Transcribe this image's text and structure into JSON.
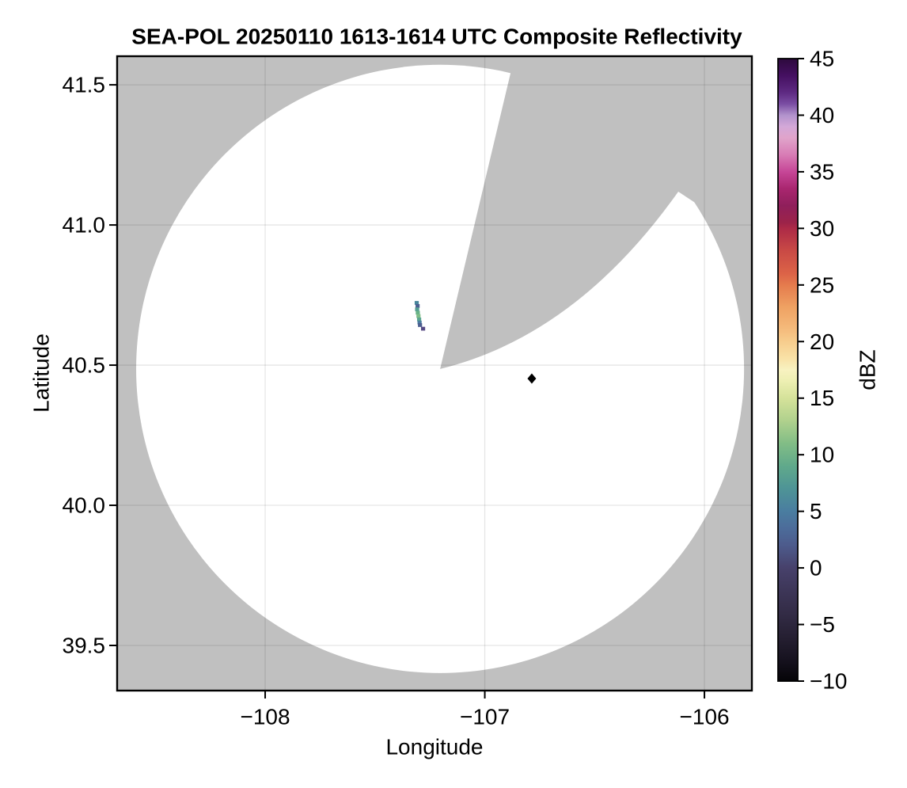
{
  "figure": {
    "title": "SEA-POL 20250110 1613-1614 UTC Composite Reflectivity",
    "xlabel": "Longitude",
    "ylabel": "Latitude",
    "colorbar_label": "dBZ"
  },
  "chart_data": {
    "type": "heatmap",
    "title": "SEA-POL 20250110 1613-1614 UTC Composite Reflectivity",
    "xlabel": "Longitude",
    "ylabel": "Latitude",
    "xlim": [
      -108.674,
      -105.784
    ],
    "ylim": [
      39.339,
      41.602
    ],
    "x_ticks": [
      -108,
      -107,
      -106
    ],
    "y_ticks": [
      39.5,
      40.0,
      40.5,
      41.0,
      41.5
    ],
    "grid": true,
    "background_color": "#c0c0c0",
    "gridline_color": "rgba(0,0,0,0.10)",
    "coverage": {
      "fill": "#ffffff",
      "center_lon": -107.2035,
      "center_lat": 40.4865,
      "radius_deg_lat": 1.085,
      "blocked_sector": {
        "fill": "#c0c0c0",
        "apex_lon": -107.2035,
        "apex_lat": 40.4865,
        "azimuth_start_deg": 13,
        "azimuth_end_deg": 74,
        "left_edge_end": [
          -106.883,
          41.541
        ],
        "curve_control": [
          -106.584,
          40.605
        ],
        "right_edge_end": [
          -106.119,
          41.119
        ]
      }
    },
    "radar_site_marker": {
      "lon": -106.786,
      "lat": 40.452,
      "shape": "diamond",
      "color": "#000000"
    },
    "echo_cells": [
      {
        "lon": -107.31,
        "lat": 40.722,
        "dbz": 6,
        "color": "#47859b"
      },
      {
        "lon": -107.306,
        "lat": 40.711,
        "dbz": 3,
        "color": "#4c5f90"
      },
      {
        "lon": -107.308,
        "lat": 40.699,
        "dbz": 8,
        "color": "#539e92"
      },
      {
        "lon": -107.305,
        "lat": 40.687,
        "dbz": 10,
        "color": "#68b287"
      },
      {
        "lon": -107.302,
        "lat": 40.675,
        "dbz": 11,
        "color": "#7fbd87"
      },
      {
        "lon": -107.299,
        "lat": 40.663,
        "dbz": 8,
        "color": "#5aa68f"
      },
      {
        "lon": -107.297,
        "lat": 40.652,
        "dbz": 5,
        "color": "#4a7c9f"
      },
      {
        "lon": -107.295,
        "lat": 40.643,
        "dbz": 2,
        "color": "#4c5f90"
      },
      {
        "lon": -107.281,
        "lat": 40.63,
        "dbz": 0,
        "color": "#564a85"
      }
    ],
    "colorbar": {
      "label": "dBZ",
      "min": -10,
      "max": 45,
      "ticks": [
        45,
        40,
        35,
        30,
        25,
        20,
        15,
        10,
        5,
        0,
        -5,
        -10
      ],
      "stops": [
        {
          "value": 45,
          "color": "#2d0a3d"
        },
        {
          "value": 43.5,
          "color": "#451061"
        },
        {
          "value": 42,
          "color": "#5e2a82"
        },
        {
          "value": 41,
          "color": "#7a4da3"
        },
        {
          "value": 40,
          "color": "#b292cc"
        },
        {
          "value": 39,
          "color": "#d3a8d8"
        },
        {
          "value": 38,
          "color": "#e0a4cb"
        },
        {
          "value": 36.5,
          "color": "#d87cb5"
        },
        {
          "value": 35,
          "color": "#c64697"
        },
        {
          "value": 33.5,
          "color": "#a9266f"
        },
        {
          "value": 32,
          "color": "#8f1f5b"
        },
        {
          "value": 30.5,
          "color": "#9c2349"
        },
        {
          "value": 30,
          "color": "#ad2a47"
        },
        {
          "value": 28,
          "color": "#c94a45"
        },
        {
          "value": 26,
          "color": "#dc6347"
        },
        {
          "value": 25,
          "color": "#e57b4d"
        },
        {
          "value": 23,
          "color": "#efa263"
        },
        {
          "value": 21,
          "color": "#f5bc7d"
        },
        {
          "value": 20,
          "color": "#f7cd8d"
        },
        {
          "value": 18.5,
          "color": "#f9e2a7"
        },
        {
          "value": 17.5,
          "color": "#f8f2c1"
        },
        {
          "value": 16.5,
          "color": "#edefb2"
        },
        {
          "value": 15,
          "color": "#d5e29a"
        },
        {
          "value": 13,
          "color": "#b0d18d"
        },
        {
          "value": 11,
          "color": "#82bd86"
        },
        {
          "value": 9,
          "color": "#60a98b"
        },
        {
          "value": 7,
          "color": "#4e9496"
        },
        {
          "value": 5,
          "color": "#4a7da0"
        },
        {
          "value": 3.5,
          "color": "#4c6c9a"
        },
        {
          "value": 2,
          "color": "#4d5b8c"
        },
        {
          "value": 0,
          "color": "#47416b"
        },
        {
          "value": -2,
          "color": "#3d3658"
        },
        {
          "value": -4,
          "color": "#332c46"
        },
        {
          "value": -6,
          "color": "#262033"
        },
        {
          "value": -8,
          "color": "#171320"
        },
        {
          "value": -10,
          "color": "#050407"
        }
      ]
    }
  }
}
